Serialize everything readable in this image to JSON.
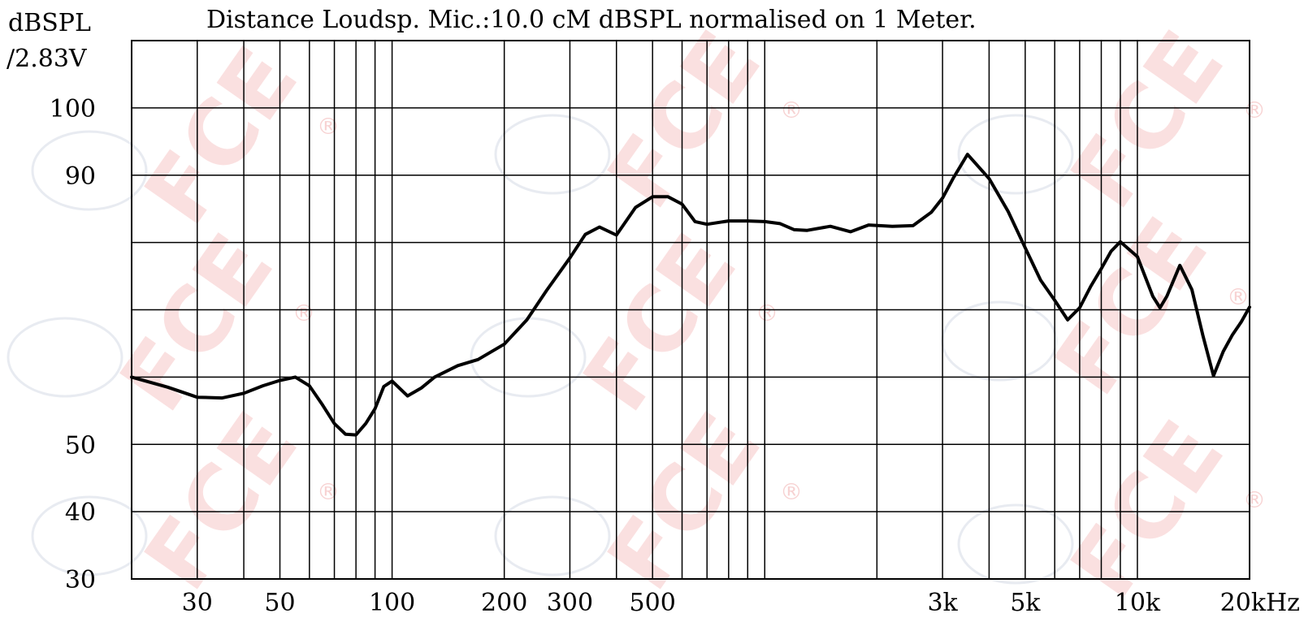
{
  "chart_data": {
    "type": "line",
    "title": "Distance Loudsp. Mic.:10.0 cM dBSPL normalised on 1 Meter.",
    "ylabel_line1": "dBSPL",
    "ylabel_line2": "/2.83V",
    "x_scale": "log",
    "y_scale": "linear",
    "xlim": [
      20,
      20000
    ],
    "ylim": [
      30,
      110
    ],
    "grid": true,
    "x_gridlines": [
      30,
      40,
      50,
      60,
      70,
      80,
      90,
      100,
      200,
      300,
      400,
      500,
      600,
      700,
      800,
      900,
      1000,
      2000,
      3000,
      4000,
      5000,
      6000,
      7000,
      8000,
      9000,
      10000,
      20000
    ],
    "y_gridlines": [
      30,
      40,
      50,
      60,
      70,
      80,
      90,
      100
    ],
    "x_tick_labels": [
      {
        "value": 30,
        "label": "30"
      },
      {
        "value": 50,
        "label": "50"
      },
      {
        "value": 100,
        "label": "100"
      },
      {
        "value": 200,
        "label": "200"
      },
      {
        "value": 300,
        "label": "300"
      },
      {
        "value": 500,
        "label": "500"
      },
      {
        "value": 3000,
        "label": "3k"
      },
      {
        "value": 5000,
        "label": "5k"
      },
      {
        "value": 10000,
        "label": "10k"
      },
      {
        "value": 20000,
        "label": "20kHz"
      }
    ],
    "y_tick_labels": [
      {
        "value": 100,
        "label": "100"
      },
      {
        "value": 90,
        "label": "90"
      },
      {
        "value": 50,
        "label": "50"
      },
      {
        "value": 40,
        "label": "40"
      },
      {
        "value": 30,
        "label": "30"
      }
    ],
    "series": [
      {
        "color": "#000000",
        "x": [
          20,
          25,
          30,
          35,
          40,
          45,
          50,
          55,
          60,
          65,
          70,
          75,
          80,
          85,
          90,
          95,
          100,
          110,
          120,
          130,
          150,
          170,
          200,
          230,
          260,
          300,
          330,
          360,
          400,
          450,
          500,
          550,
          600,
          650,
          700,
          800,
          900,
          1000,
          1100,
          1200,
          1300,
          1500,
          1700,
          1900,
          2200,
          2500,
          2800,
          3000,
          3200,
          3500,
          4000,
          4500,
          5000,
          5500,
          6000,
          6500,
          7000,
          7500,
          8000,
          8500,
          9000,
          10000,
          11000,
          11500,
          12000,
          13000,
          14000,
          15000,
          16000,
          17000,
          18000,
          19000,
          20000
        ],
        "y": [
          60,
          58.5,
          57,
          56.9,
          57.6,
          58.7,
          59.5,
          60,
          58.7,
          55.9,
          53.1,
          51.5,
          51.4,
          53.1,
          55.3,
          58.6,
          59.4,
          57.2,
          58.4,
          60,
          61.7,
          62.6,
          64.9,
          68.5,
          72.9,
          77.7,
          81.2,
          82.3,
          81.1,
          85.2,
          86.8,
          86.8,
          85.7,
          83.1,
          82.7,
          83.2,
          83.2,
          83.1,
          82.8,
          81.9,
          81.8,
          82.4,
          81.6,
          82.6,
          82.4,
          82.5,
          84.5,
          86.6,
          89.5,
          93.1,
          89.5,
          84.6,
          79.2,
          74.4,
          71.4,
          68.5,
          70.3,
          73.5,
          76.1,
          78.7,
          80.1,
          77.9,
          72,
          70.3,
          72,
          76.6,
          73,
          66.1,
          60.2,
          63.8,
          66.3,
          68.2,
          70.4
        ]
      }
    ]
  },
  "watermark": {
    "text": "FCE",
    "registered_mark": "®",
    "color": "#f7c8c8"
  }
}
